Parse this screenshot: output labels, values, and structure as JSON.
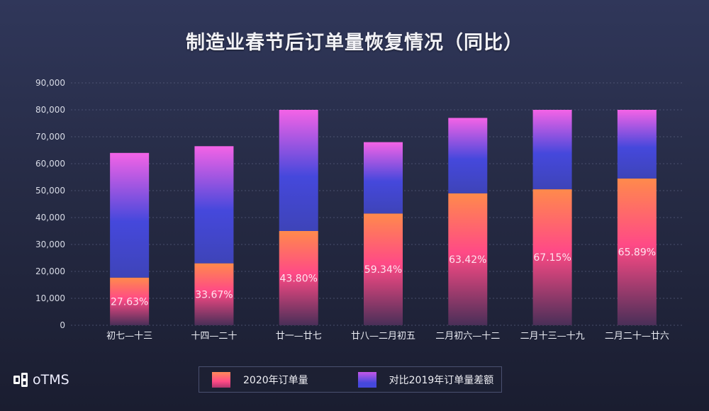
{
  "chart_data": {
    "type": "bar",
    "stacked": true,
    "title": "制造业春节后订单量恢复情况（同比）",
    "xlabel": "",
    "ylabel": "",
    "ylim": [
      0,
      90000
    ],
    "yticks": [
      "0",
      "10,000",
      "20,000",
      "30,000",
      "40,000",
      "50,000",
      "60,000",
      "70,000",
      "80,000",
      "90,000"
    ],
    "ytick_values": [
      0,
      10000,
      20000,
      30000,
      40000,
      50000,
      60000,
      70000,
      80000,
      90000
    ],
    "grid": true,
    "categories": [
      "初七—十三",
      "十四—二十",
      "廿一—廿七",
      "廿八—二月初五",
      "二月初六—十二",
      "二月十三—十九",
      "二月二十—廿六"
    ],
    "series": [
      {
        "name": "2020年订单量",
        "values": [
          17700,
          23000,
          35000,
          41500,
          49000,
          50500,
          54500
        ],
        "color_top": "#ff8a4c",
        "color_mid": "#ff4a86",
        "color_bottom": "#4a2f58"
      },
      {
        "name": "对比2019年订单量差额",
        "values": [
          46300,
          43500,
          45000,
          26500,
          28000,
          29500,
          25500
        ],
        "color_top": "#f463e6",
        "color_bottom": "#3e46d4"
      }
    ],
    "data_labels": [
      "27.63%",
      "33.67%",
      "43.80%",
      "59.34%",
      "63.42%",
      "67.15%",
      "65.89%"
    ],
    "legend_position": "bottom-center"
  },
  "brand": {
    "name": "oTMS"
  }
}
